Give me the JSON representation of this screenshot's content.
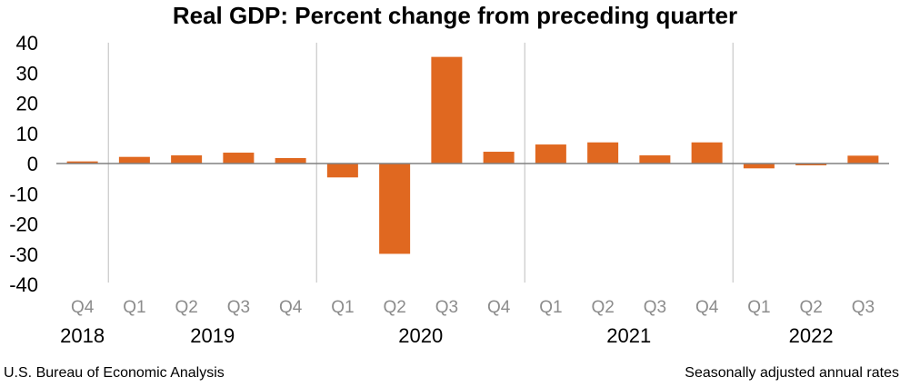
{
  "chart_data": {
    "type": "bar",
    "title": "Real GDP:  Percent change from preceding quarter",
    "categories": [
      "Q4",
      "Q1",
      "Q2",
      "Q3",
      "Q4",
      "Q1",
      "Q2",
      "Q3",
      "Q4",
      "Q1",
      "Q2",
      "Q3",
      "Q4",
      "Q1",
      "Q2",
      "Q3"
    ],
    "years": [
      {
        "label": "2018",
        "from": 0,
        "to": 0
      },
      {
        "label": "2019",
        "from": 1,
        "to": 4
      },
      {
        "label": "2020",
        "from": 5,
        "to": 8
      },
      {
        "label": "2021",
        "from": 9,
        "to": 12
      },
      {
        "label": "2022",
        "from": 13,
        "to": 15
      }
    ],
    "values": [
      0.7,
      2.2,
      2.7,
      3.6,
      1.8,
      -4.6,
      -29.9,
      35.3,
      3.9,
      6.3,
      7.0,
      2.7,
      7.0,
      -1.6,
      -0.6,
      2.6
    ],
    "yticks": [
      40,
      30,
      20,
      10,
      0,
      -10,
      -20,
      -30,
      -40
    ],
    "ylim": [
      -40,
      40
    ],
    "xlabel": "",
    "ylabel": "",
    "grid": false,
    "bar_color": "#E06820",
    "axis_color": "#808080",
    "separator_color": "#C8C8C8",
    "quarter_label_color": "#8C8C8C"
  },
  "footer": {
    "source": "U.S. Bureau of Economic Analysis",
    "note": "Seasonally adjusted annual rates"
  }
}
